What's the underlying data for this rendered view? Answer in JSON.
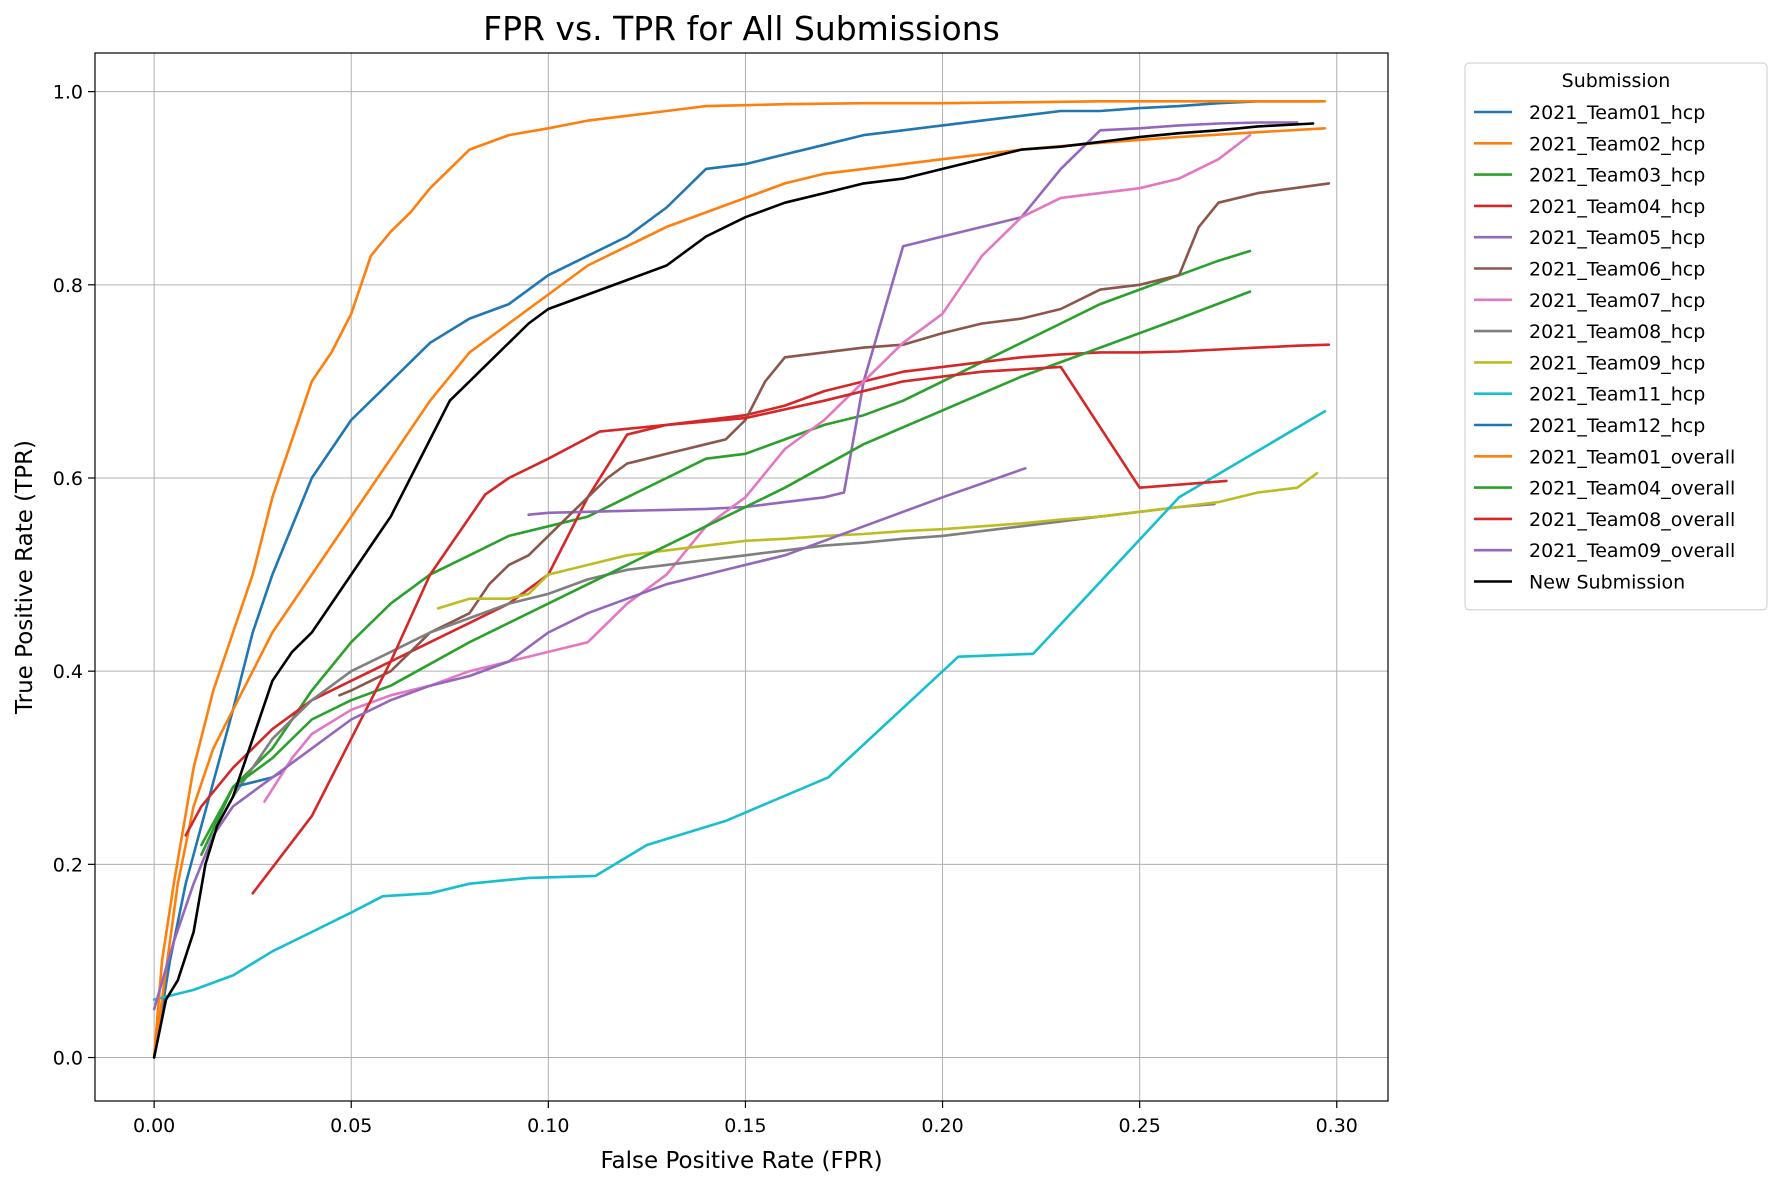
{
  "chart_data": {
    "type": "line",
    "title": "FPR vs. TPR for All Submissions",
    "xlabel": "False Positive Rate (FPR)",
    "ylabel": "True Positive Rate (TPR)",
    "xlim": [
      -0.015,
      0.313
    ],
    "ylim": [
      -0.045,
      1.04
    ],
    "xticks": [
      0.0,
      0.05,
      0.1,
      0.15,
      0.2,
      0.25,
      0.3
    ],
    "xtick_labels": [
      "0.00",
      "0.05",
      "0.10",
      "0.15",
      "0.20",
      "0.25",
      "0.30"
    ],
    "yticks": [
      0.0,
      0.2,
      0.4,
      0.6,
      0.8,
      1.0
    ],
    "ytick_labels": [
      "0.0",
      "0.2",
      "0.4",
      "0.6",
      "0.8",
      "1.0"
    ],
    "grid": true,
    "legend": {
      "title": "Submission",
      "placement": "outside-right"
    },
    "series": [
      {
        "name": "2021_Team01_hcp",
        "color": "#1f77b4",
        "x": [
          0,
          0.004,
          0.008,
          0.012,
          0.016,
          0.02,
          0.025,
          0.03,
          0.035,
          0.04,
          0.045,
          0.05,
          0.06,
          0.07,
          0.08,
          0.09,
          0.1,
          0.11,
          0.12,
          0.13,
          0.14,
          0.15,
          0.16,
          0.17,
          0.18,
          0.19,
          0.2,
          0.21,
          0.22,
          0.23,
          0.24,
          0.25,
          0.26,
          0.27,
          0.28,
          0.29,
          0.296
        ],
        "y": [
          0,
          0.1,
          0.18,
          0.24,
          0.3,
          0.36,
          0.44,
          0.5,
          0.55,
          0.6,
          0.63,
          0.66,
          0.7,
          0.74,
          0.765,
          0.78,
          0.81,
          0.83,
          0.85,
          0.88,
          0.92,
          0.925,
          0.935,
          0.945,
          0.955,
          0.96,
          0.965,
          0.97,
          0.975,
          0.98,
          0.98,
          0.983,
          0.985,
          0.988,
          0.99,
          0.99,
          0.99
        ]
      },
      {
        "name": "2021_Team02_hcp",
        "color": "#ff7f0e",
        "x": [
          0,
          0.006,
          0.01,
          0.015,
          0.02,
          0.025,
          0.03,
          0.04,
          0.05,
          0.06,
          0.07,
          0.08,
          0.09,
          0.1,
          0.11,
          0.12,
          0.13,
          0.14,
          0.15,
          0.16,
          0.17,
          0.18,
          0.19,
          0.2,
          0.22,
          0.24,
          0.26,
          0.28,
          0.297
        ],
        "y": [
          0,
          0.18,
          0.26,
          0.32,
          0.36,
          0.4,
          0.44,
          0.5,
          0.56,
          0.62,
          0.68,
          0.73,
          0.76,
          0.79,
          0.82,
          0.84,
          0.86,
          0.875,
          0.89,
          0.905,
          0.915,
          0.92,
          0.925,
          0.93,
          0.94,
          0.947,
          0.953,
          0.958,
          0.962
        ]
      },
      {
        "name": "2021_Team03_hcp",
        "color": "#2ca02c",
        "x": [
          0.012,
          0.02,
          0.03,
          0.04,
          0.05,
          0.06,
          0.07,
          0.08,
          0.09,
          0.1,
          0.11,
          0.12,
          0.13,
          0.14,
          0.15,
          0.16,
          0.17,
          0.18,
          0.19,
          0.2,
          0.21,
          0.22,
          0.23,
          0.24,
          0.25,
          0.26,
          0.27,
          0.278
        ],
        "y": [
          0.22,
          0.28,
          0.32,
          0.38,
          0.43,
          0.47,
          0.5,
          0.52,
          0.54,
          0.55,
          0.56,
          0.58,
          0.6,
          0.62,
          0.625,
          0.64,
          0.655,
          0.665,
          0.68,
          0.7,
          0.72,
          0.74,
          0.76,
          0.78,
          0.795,
          0.81,
          0.825,
          0.835
        ]
      },
      {
        "name": "2021_Team04_hcp",
        "color": "#d62728",
        "x": [
          0.008,
          0.012,
          0.016,
          0.02,
          0.025,
          0.03,
          0.04,
          0.05,
          0.06,
          0.07,
          0.08,
          0.09,
          0.1,
          0.11,
          0.12,
          0.13,
          0.14,
          0.15,
          0.16,
          0.17,
          0.18,
          0.19,
          0.2,
          0.21,
          0.22,
          0.23,
          0.24,
          0.25,
          0.26,
          0.27,
          0.28,
          0.29,
          0.298
        ],
        "y": [
          0.23,
          0.26,
          0.28,
          0.3,
          0.32,
          0.34,
          0.37,
          0.39,
          0.41,
          0.43,
          0.45,
          0.47,
          0.5,
          0.58,
          0.645,
          0.655,
          0.66,
          0.665,
          0.675,
          0.69,
          0.7,
          0.71,
          0.715,
          0.72,
          0.725,
          0.728,
          0.73,
          0.73,
          0.731,
          0.733,
          0.735,
          0.737,
          0.738
        ]
      },
      {
        "name": "2021_Team05_hcp",
        "color": "#9467bd",
        "x": [
          0.095,
          0.1,
          0.11,
          0.12,
          0.13,
          0.14,
          0.15,
          0.16,
          0.17,
          0.175,
          0.18,
          0.19,
          0.2,
          0.21,
          0.22,
          0.23,
          0.24,
          0.25,
          0.26,
          0.27,
          0.28,
          0.29
        ],
        "y": [
          0.562,
          0.564,
          0.565,
          0.566,
          0.567,
          0.568,
          0.57,
          0.575,
          0.58,
          0.585,
          0.7,
          0.84,
          0.85,
          0.86,
          0.87,
          0.92,
          0.96,
          0.962,
          0.965,
          0.967,
          0.968,
          0.968
        ]
      },
      {
        "name": "2021_Team06_hcp",
        "color": "#8c564b",
        "x": [
          0.047,
          0.05,
          0.055,
          0.06,
          0.065,
          0.07,
          0.075,
          0.08,
          0.085,
          0.09,
          0.095,
          0.1,
          0.105,
          0.11,
          0.115,
          0.12,
          0.125,
          0.13,
          0.135,
          0.14,
          0.145,
          0.15,
          0.155,
          0.16,
          0.17,
          0.18,
          0.19,
          0.2,
          0.21,
          0.22,
          0.23,
          0.24,
          0.25,
          0.26,
          0.265,
          0.27,
          0.28,
          0.298
        ],
        "y": [
          0.375,
          0.38,
          0.39,
          0.4,
          0.42,
          0.44,
          0.45,
          0.46,
          0.49,
          0.51,
          0.52,
          0.54,
          0.56,
          0.58,
          0.6,
          0.615,
          0.62,
          0.625,
          0.63,
          0.635,
          0.64,
          0.66,
          0.7,
          0.725,
          0.73,
          0.735,
          0.738,
          0.75,
          0.76,
          0.765,
          0.775,
          0.795,
          0.8,
          0.81,
          0.86,
          0.885,
          0.895,
          0.905
        ]
      },
      {
        "name": "2021_Team07_hcp",
        "color": "#e377c2",
        "x": [
          0.028,
          0.035,
          0.04,
          0.05,
          0.06,
          0.07,
          0.08,
          0.09,
          0.1,
          0.11,
          0.12,
          0.13,
          0.14,
          0.15,
          0.16,
          0.17,
          0.18,
          0.19,
          0.2,
          0.21,
          0.22,
          0.23,
          0.24,
          0.25,
          0.26,
          0.27,
          0.278
        ],
        "y": [
          0.265,
          0.31,
          0.335,
          0.36,
          0.375,
          0.385,
          0.4,
          0.41,
          0.42,
          0.43,
          0.47,
          0.5,
          0.55,
          0.58,
          0.63,
          0.66,
          0.7,
          0.74,
          0.77,
          0.83,
          0.87,
          0.89,
          0.895,
          0.9,
          0.91,
          0.93,
          0.955
        ]
      },
      {
        "name": "2021_Team08_hcp",
        "color": "#7f7f7f",
        "x": [
          0.02,
          0.03,
          0.04,
          0.05,
          0.06,
          0.07,
          0.08,
          0.09,
          0.1,
          0.11,
          0.12,
          0.13,
          0.14,
          0.15,
          0.16,
          0.17,
          0.18,
          0.19,
          0.2,
          0.21,
          0.22,
          0.23,
          0.24,
          0.25,
          0.26,
          0.269
        ],
        "y": [
          0.27,
          0.33,
          0.37,
          0.4,
          0.42,
          0.44,
          0.455,
          0.47,
          0.48,
          0.495,
          0.505,
          0.51,
          0.515,
          0.52,
          0.525,
          0.53,
          0.533,
          0.537,
          0.54,
          0.545,
          0.55,
          0.555,
          0.56,
          0.565,
          0.57,
          0.573
        ]
      },
      {
        "name": "2021_Team09_hcp",
        "color": "#bcbd22",
        "x": [
          0.072,
          0.08,
          0.09,
          0.095,
          0.1,
          0.11,
          0.12,
          0.13,
          0.14,
          0.15,
          0.16,
          0.17,
          0.18,
          0.19,
          0.2,
          0.21,
          0.22,
          0.23,
          0.24,
          0.25,
          0.26,
          0.27,
          0.28,
          0.29,
          0.295
        ],
        "y": [
          0.465,
          0.475,
          0.475,
          0.48,
          0.5,
          0.51,
          0.52,
          0.525,
          0.53,
          0.535,
          0.537,
          0.54,
          0.542,
          0.545,
          0.547,
          0.55,
          0.553,
          0.557,
          0.56,
          0.565,
          0.57,
          0.575,
          0.585,
          0.59,
          0.605
        ]
      },
      {
        "name": "2021_Team11_hcp",
        "color": "#17becf",
        "x": [
          0,
          0.01,
          0.02,
          0.03,
          0.04,
          0.05,
          0.058,
          0.07,
          0.08,
          0.095,
          0.112,
          0.125,
          0.145,
          0.171,
          0.204,
          0.223,
          0.26,
          0.297
        ],
        "y": [
          0.06,
          0.07,
          0.085,
          0.11,
          0.13,
          0.15,
          0.167,
          0.17,
          0.18,
          0.186,
          0.188,
          0.22,
          0.245,
          0.29,
          0.415,
          0.418,
          0.58,
          0.669
        ]
      },
      {
        "name": "2021_Team12_hcp",
        "color": "#1f77b4",
        "x": [
          0.02,
          0.025,
          0.03,
          0.032
        ],
        "y": [
          0.28,
          0.285,
          0.29,
          0.295
        ]
      },
      {
        "name": "2021_Team01_overall",
        "color": "#ff7f0e",
        "x": [
          0,
          0.002,
          0.005,
          0.01,
          0.015,
          0.02,
          0.025,
          0.03,
          0.035,
          0.04,
          0.045,
          0.05,
          0.055,
          0.06,
          0.065,
          0.07,
          0.075,
          0.08,
          0.09,
          0.1,
          0.11,
          0.12,
          0.13,
          0.14,
          0.15,
          0.16,
          0.18,
          0.2,
          0.22,
          0.24,
          0.26,
          0.28,
          0.297
        ],
        "y": [
          0,
          0.1,
          0.18,
          0.3,
          0.38,
          0.44,
          0.5,
          0.58,
          0.64,
          0.7,
          0.73,
          0.77,
          0.83,
          0.855,
          0.875,
          0.9,
          0.92,
          0.94,
          0.955,
          0.962,
          0.97,
          0.975,
          0.98,
          0.985,
          0.986,
          0.987,
          0.988,
          0.988,
          0.989,
          0.99,
          0.99,
          0.99,
          0.99
        ]
      },
      {
        "name": "2021_Team04_overall",
        "color": "#2ca02c",
        "x": [
          0.012,
          0.02,
          0.03,
          0.04,
          0.05,
          0.06,
          0.08,
          0.1,
          0.12,
          0.14,
          0.16,
          0.18,
          0.2,
          0.22,
          0.24,
          0.26,
          0.278
        ],
        "y": [
          0.21,
          0.28,
          0.31,
          0.35,
          0.37,
          0.385,
          0.43,
          0.47,
          0.51,
          0.55,
          0.59,
          0.635,
          0.67,
          0.705,
          0.735,
          0.765,
          0.793
        ]
      },
      {
        "name": "2021_Team08_overall",
        "color": "#d62728",
        "x": [
          0.025,
          0.04,
          0.05,
          0.06,
          0.07,
          0.084,
          0.09,
          0.1,
          0.113,
          0.13,
          0.15,
          0.17,
          0.19,
          0.21,
          0.23,
          0.25,
          0.272
        ],
        "y": [
          0.17,
          0.25,
          0.33,
          0.41,
          0.5,
          0.583,
          0.6,
          0.62,
          0.648,
          0.655,
          0.662,
          0.68,
          0.7,
          0.71,
          0.715,
          0.59,
          0.597
        ]
      },
      {
        "name": "2021_Team09_overall",
        "color": "#9467bd",
        "x": [
          0,
          0.005,
          0.01,
          0.015,
          0.02,
          0.03,
          0.04,
          0.05,
          0.06,
          0.07,
          0.08,
          0.09,
          0.1,
          0.11,
          0.12,
          0.13,
          0.14,
          0.15,
          0.16,
          0.18,
          0.2,
          0.221
        ],
        "y": [
          0.05,
          0.12,
          0.18,
          0.23,
          0.26,
          0.29,
          0.32,
          0.35,
          0.37,
          0.385,
          0.395,
          0.41,
          0.44,
          0.46,
          0.475,
          0.49,
          0.5,
          0.51,
          0.52,
          0.55,
          0.58,
          0.61
        ]
      },
      {
        "name": "New Submission",
        "color": "#000000",
        "x": [
          0,
          0.003,
          0.006,
          0.01,
          0.013,
          0.016,
          0.02,
          0.025,
          0.03,
          0.035,
          0.04,
          0.045,
          0.05,
          0.055,
          0.06,
          0.065,
          0.07,
          0.075,
          0.08,
          0.085,
          0.09,
          0.095,
          0.1,
          0.11,
          0.12,
          0.13,
          0.14,
          0.15,
          0.16,
          0.17,
          0.18,
          0.19,
          0.2,
          0.21,
          0.22,
          0.23,
          0.24,
          0.25,
          0.26,
          0.27,
          0.28,
          0.294
        ],
        "y": [
          0,
          0.06,
          0.08,
          0.13,
          0.2,
          0.24,
          0.27,
          0.33,
          0.39,
          0.42,
          0.44,
          0.47,
          0.5,
          0.53,
          0.56,
          0.6,
          0.64,
          0.68,
          0.7,
          0.72,
          0.74,
          0.76,
          0.775,
          0.79,
          0.805,
          0.82,
          0.85,
          0.87,
          0.885,
          0.895,
          0.905,
          0.91,
          0.92,
          0.93,
          0.94,
          0.943,
          0.948,
          0.953,
          0.957,
          0.96,
          0.964,
          0.967
        ]
      }
    ]
  }
}
